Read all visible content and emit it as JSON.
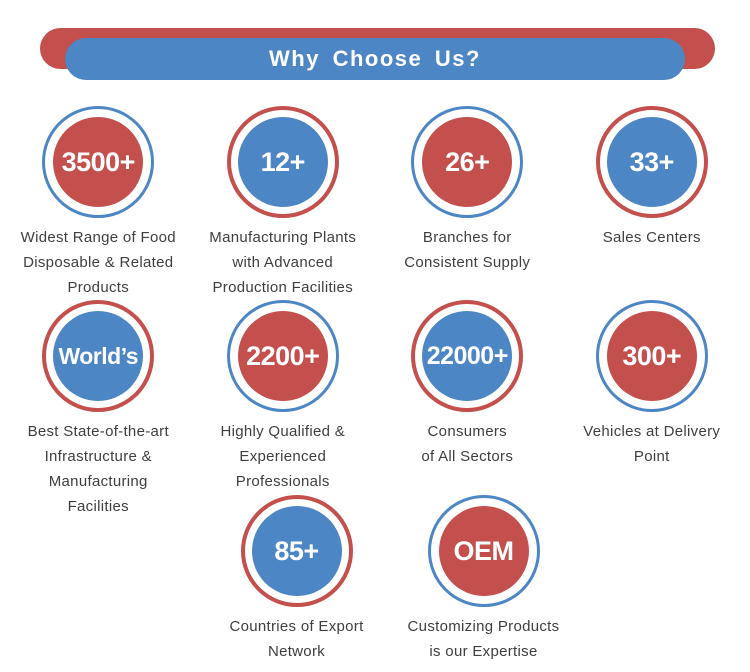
{
  "header": {
    "title": "Why Choose Us?"
  },
  "colors": {
    "red": "#C3504C",
    "blue": "#4D86C4",
    "text": "#3E3E3E",
    "number_text": "#FFFFFF"
  },
  "rows": [
    {
      "items": [
        {
          "value": "3500+",
          "fill": "red",
          "ring": "blue",
          "label_lines": [
            "Widest Range of Food",
            "Disposable & Related",
            "Products"
          ]
        },
        {
          "value": "12+",
          "fill": "blue",
          "ring": "red",
          "label_lines": [
            "Manufacturing Plants",
            "with Advanced",
            "Production Facilities"
          ]
        },
        {
          "value": "26+",
          "fill": "red",
          "ring": "blue",
          "label_lines": [
            "Branches for",
            "Consistent Supply"
          ]
        },
        {
          "value": "33+",
          "fill": "blue",
          "ring": "red",
          "label_lines": [
            "Sales Centers"
          ]
        }
      ]
    },
    {
      "items": [
        {
          "value": "World’s",
          "fill": "blue",
          "ring": "red",
          "label_lines": [
            "Best State-of-the-art",
            "Infrastructure &",
            "Manufacturing",
            "Facilities"
          ]
        },
        {
          "value": "2200+",
          "fill": "red",
          "ring": "blue",
          "label_lines": [
            "Highly Qualified &",
            "Experienced",
            "Professionals"
          ]
        },
        {
          "value": "22000+",
          "fill": "blue",
          "ring": "red",
          "label_lines": [
            "Consumers",
            "of All Sectors"
          ]
        },
        {
          "value": "300+",
          "fill": "red",
          "ring": "blue",
          "label_lines": [
            "Vehicles at Delivery",
            "Point"
          ]
        }
      ]
    },
    {
      "items": [
        {
          "value": "85+",
          "fill": "blue",
          "ring": "red",
          "label_lines": [
            "Countries of Export",
            "Network"
          ]
        },
        {
          "value": "OEM",
          "fill": "red",
          "ring": "blue",
          "label_lines": [
            "Customizing Products",
            "is our Expertise"
          ]
        }
      ]
    }
  ]
}
